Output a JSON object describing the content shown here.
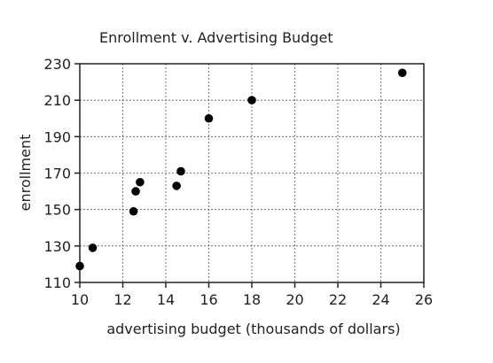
{
  "chart_data": {
    "type": "scatter",
    "title": "Enrollment v. Advertising Budget",
    "xlabel": "advertising budget (thousands of dollars)",
    "ylabel": "enrollment",
    "xlim": [
      10,
      26
    ],
    "ylim": [
      110,
      230
    ],
    "xticks": [
      10,
      12,
      14,
      16,
      18,
      20,
      22,
      24,
      26
    ],
    "yticks": [
      110,
      130,
      150,
      170,
      190,
      210,
      230
    ],
    "grid": true,
    "points": [
      {
        "x": 10,
        "y": 119
      },
      {
        "x": 10.6,
        "y": 129
      },
      {
        "x": 12.5,
        "y": 149
      },
      {
        "x": 12.6,
        "y": 160
      },
      {
        "x": 12.8,
        "y": 165
      },
      {
        "x": 14.5,
        "y": 163
      },
      {
        "x": 14.7,
        "y": 171
      },
      {
        "x": 16,
        "y": 200
      },
      {
        "x": 18,
        "y": 210
      },
      {
        "x": 25,
        "y": 225
      }
    ]
  }
}
